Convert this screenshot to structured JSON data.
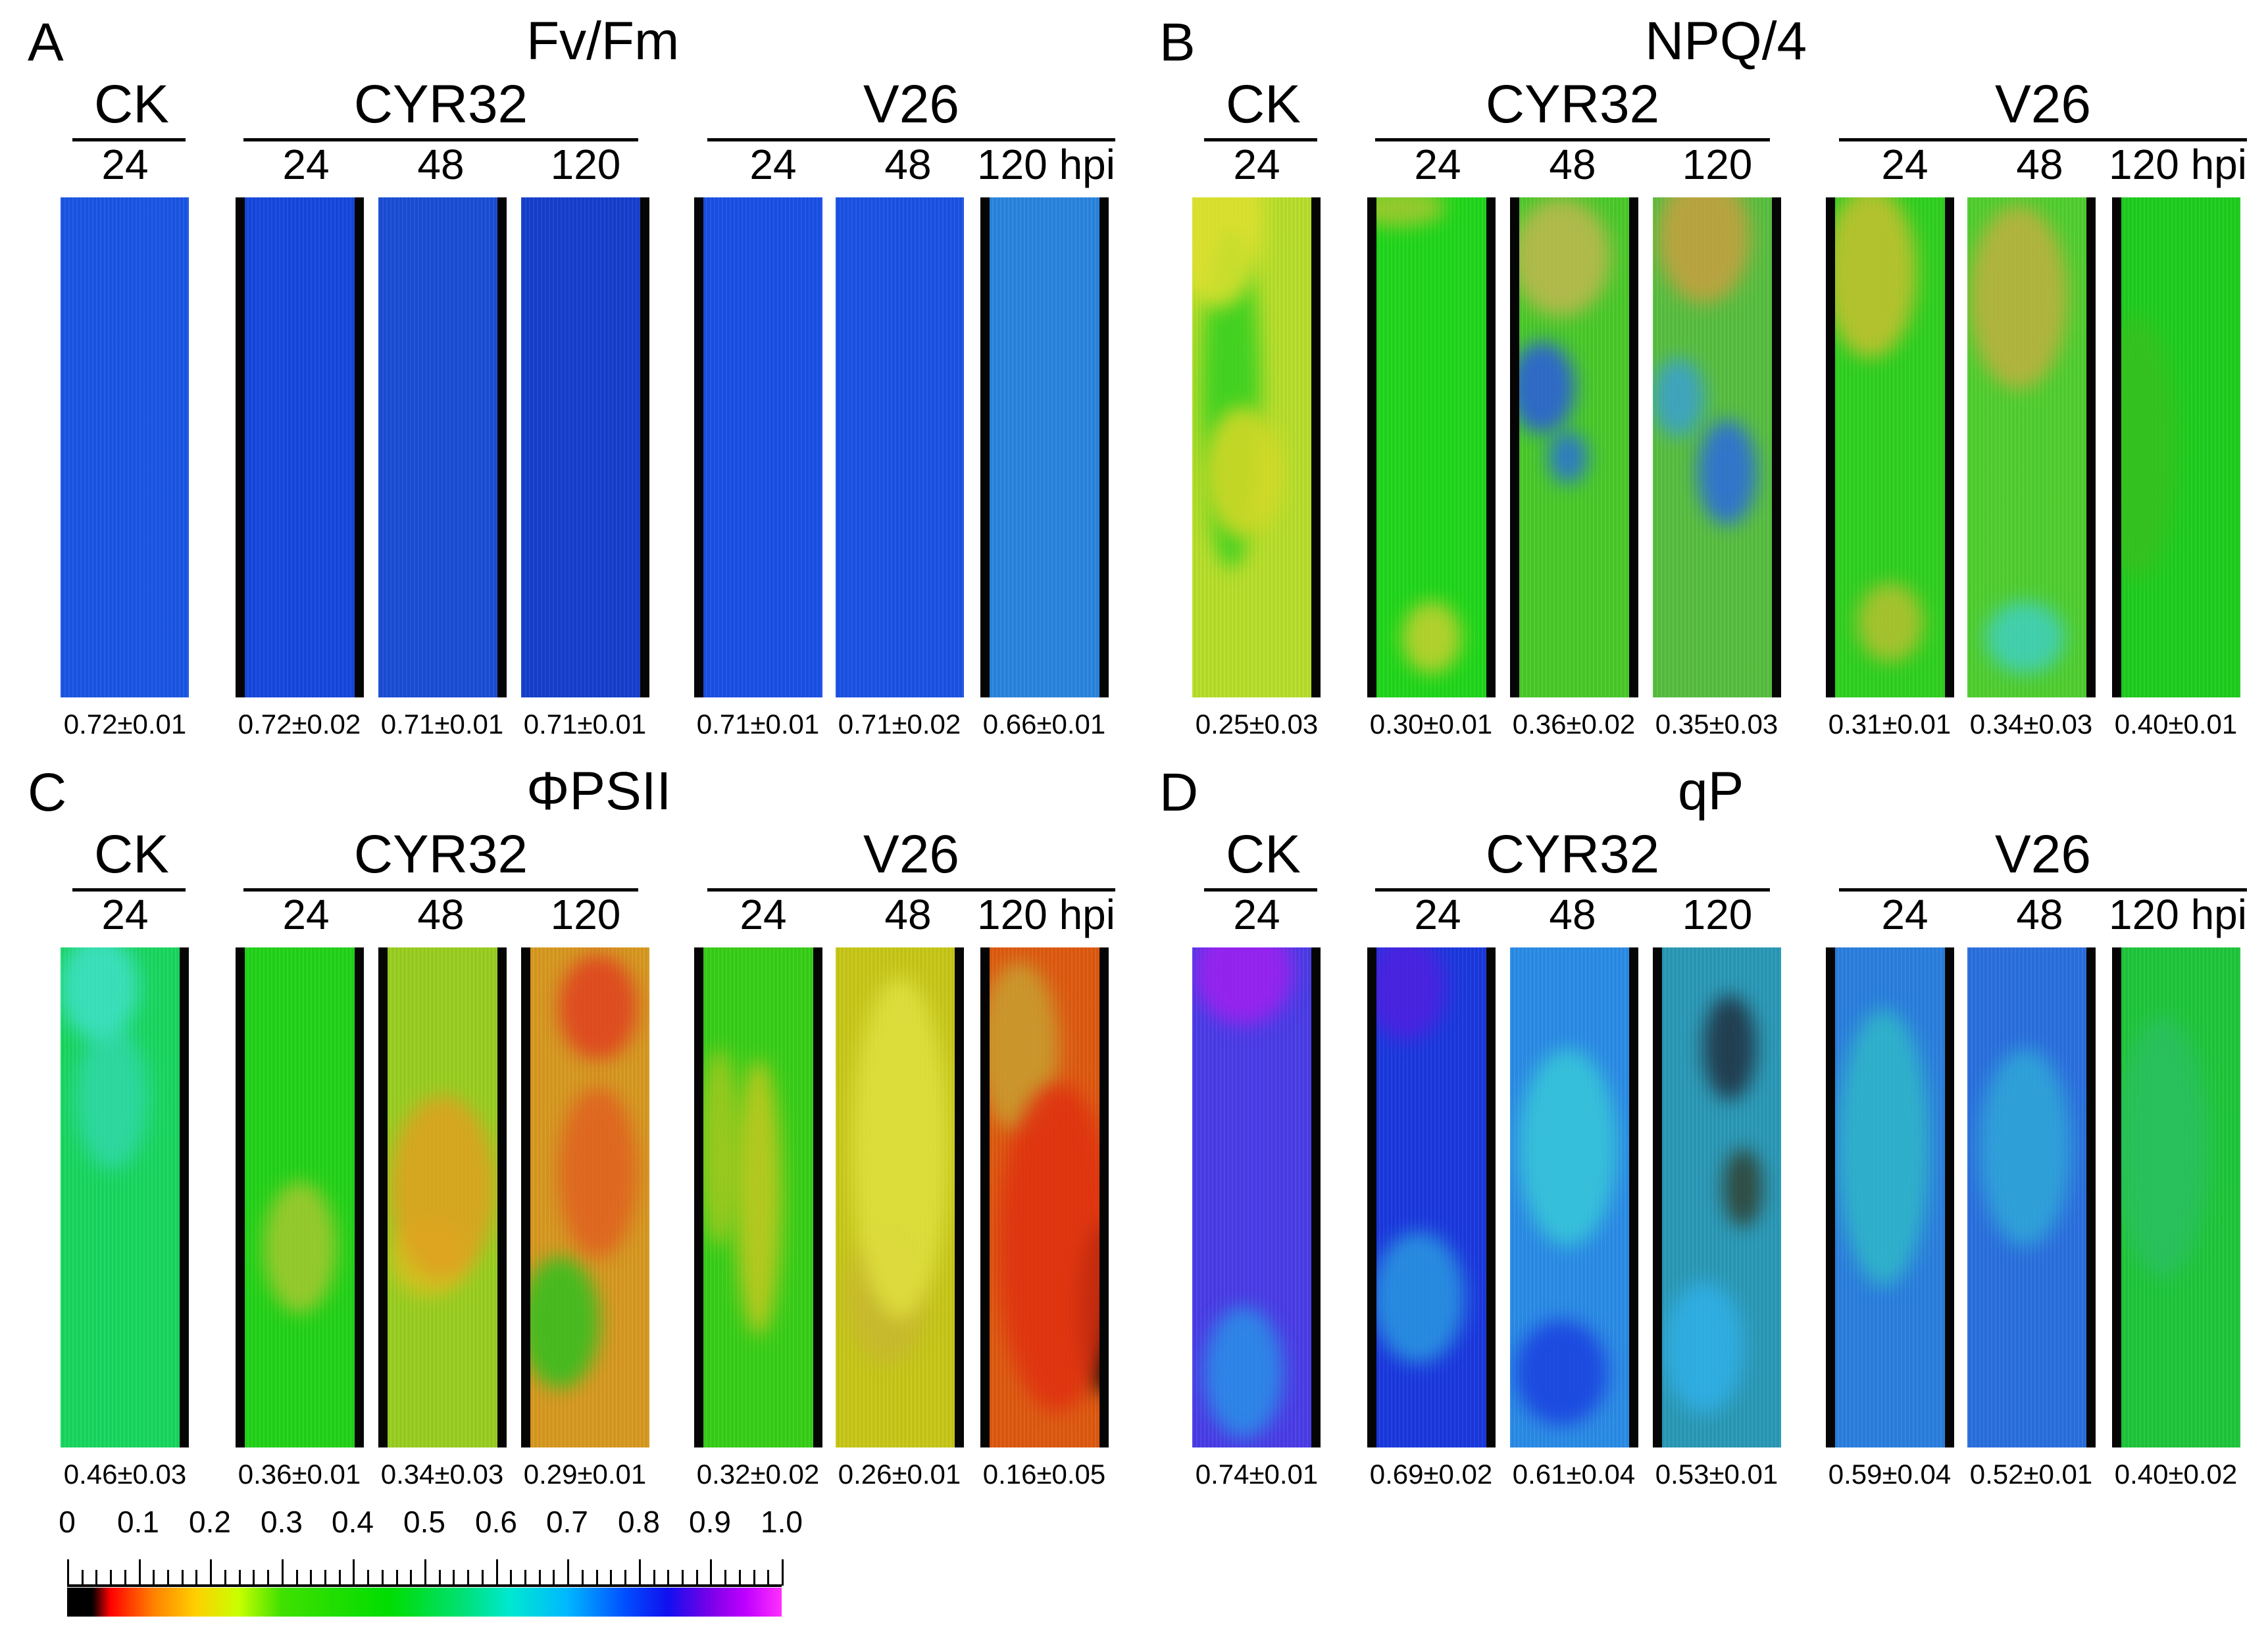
{
  "panels": [
    {
      "letter": "A",
      "title": "Fv/Fm",
      "groups": [
        "CK",
        "CYR32",
        "V26"
      ],
      "times": [
        "24",
        "24",
        "48",
        "120",
        "24",
        "48",
        "120 hpi"
      ],
      "values": [
        "0.72±0.01",
        "0.72±0.02",
        "0.71±0.01",
        "0.71±0.01",
        "0.71±0.01",
        "0.71±0.02",
        "0.66±0.01"
      ]
    },
    {
      "letter": "B",
      "title": "NPQ/4",
      "groups": [
        "CK",
        "CYR32",
        "V26"
      ],
      "times": [
        "24",
        "24",
        "48",
        "120",
        "24",
        "48",
        "120 hpi"
      ],
      "values": [
        "0.25±0.03",
        "0.30±0.01",
        "0.36±0.02",
        "0.35±0.03",
        "0.31±0.01",
        "0.34±0.03",
        "0.40±0.01"
      ]
    },
    {
      "letter": "C",
      "title": "ΦPSII",
      "groups": [
        "CK",
        "CYR32",
        "V26"
      ],
      "times": [
        "24",
        "24",
        "48",
        "120",
        "24",
        "48",
        "120 hpi"
      ],
      "values": [
        "0.46±0.03",
        "0.36±0.01",
        "0.34±0.03",
        "0.29±0.01",
        "0.32±0.02",
        "0.26±0.01",
        "0.16±0.05"
      ]
    },
    {
      "letter": "D",
      "title": "qP",
      "groups": [
        "CK",
        "CYR32",
        "V26"
      ],
      "times": [
        "24",
        "24",
        "48",
        "120",
        "24",
        "48",
        "120 hpi"
      ],
      "values": [
        "0.74±0.01",
        "0.69±0.02",
        "0.61±0.04",
        "0.53±0.01",
        "0.59±0.04",
        "0.52±0.01",
        "0.40±0.02"
      ]
    }
  ],
  "scale": {
    "labels": [
      "0",
      "0.1",
      "0.2",
      "0.3",
      "0.4",
      "0.5",
      "0.6",
      "0.7",
      "0.8",
      "0.9",
      "1.0"
    ]
  },
  "leaf_colors": {
    "A": [
      "#1a56e6",
      "#1648e0",
      "#1a4ed8",
      "#153fd0",
      "#1a50e8",
      "#1a52e6",
      "#2a86e0"
    ],
    "B": [
      "#b8e02a",
      "#1fd81a",
      "#4acb2a",
      "#58c040",
      "#2fd220",
      "#50d030",
      "#1ecf1e"
    ],
    "C": [
      "#18d860",
      "#22d418",
      "#9ad020",
      "#d89a20",
      "#38d018",
      "#c8c818",
      "#e05a10"
    ],
    "D": [
      "#4a3ce8",
      "#1a38e0",
      "#2a8ce8",
      "#2a9ab8",
      "#2a80e0",
      "#2a70e0",
      "#1ec83a"
    ]
  }
}
